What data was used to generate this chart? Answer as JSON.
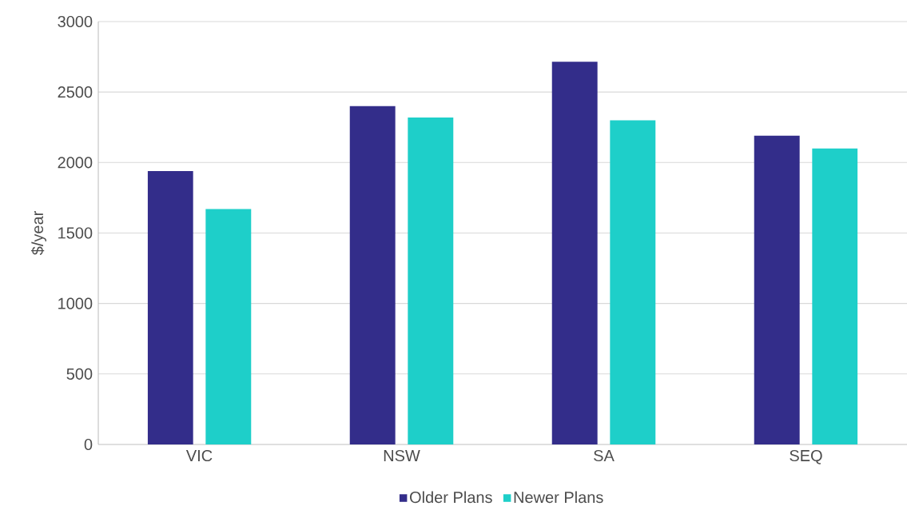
{
  "chart_data": {
    "type": "bar",
    "ylabel": "$/year",
    "categories": [
      "VIC",
      "NSW",
      "SA",
      "SEQ"
    ],
    "series": [
      {
        "name": "Older Plans",
        "color": "#332d8a",
        "values": [
          1940,
          2400,
          2715,
          2190
        ]
      },
      {
        "name": "Newer Plans",
        "color": "#1ecfc9",
        "values": [
          1670,
          2320,
          2300,
          2100
        ]
      }
    ],
    "ylim": [
      0,
      3000
    ],
    "yticks": [
      0,
      500,
      1000,
      1500,
      2000,
      2500,
      3000
    ],
    "grid": "y",
    "legend": "bottom"
  }
}
